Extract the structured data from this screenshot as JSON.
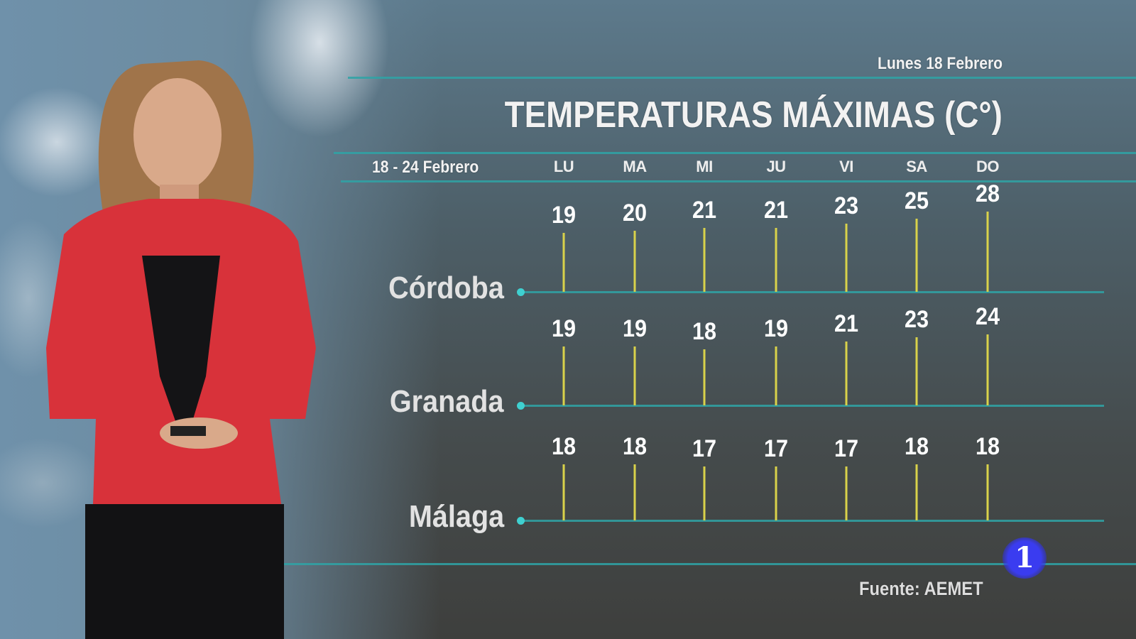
{
  "header": {
    "date": "Lunes 18 Febrero",
    "title": "TEMPERATURAS MÁXIMAS (C°)",
    "range": "18 - 24 Febrero"
  },
  "footer": {
    "source": "Fuente: AEMET",
    "channel_logo": "1"
  },
  "colors": {
    "grid_line": "#2fa3a6",
    "bar": "#d9d24a",
    "dot": "#3fd0d0",
    "logo": "#3a3cf0"
  },
  "chart_data": {
    "type": "bar",
    "title": "TEMPERATURAS MÁXIMAS (C°)",
    "categories": [
      "LU",
      "MA",
      "MI",
      "JU",
      "VI",
      "SA",
      "DO"
    ],
    "series": [
      {
        "name": "Córdoba",
        "values": [
          19,
          20,
          21,
          21,
          23,
          25,
          28
        ]
      },
      {
        "name": "Granada",
        "values": [
          19,
          19,
          18,
          19,
          21,
          23,
          24
        ]
      },
      {
        "name": "Málaga",
        "values": [
          18,
          18,
          17,
          17,
          17,
          18,
          18
        ]
      }
    ]
  }
}
